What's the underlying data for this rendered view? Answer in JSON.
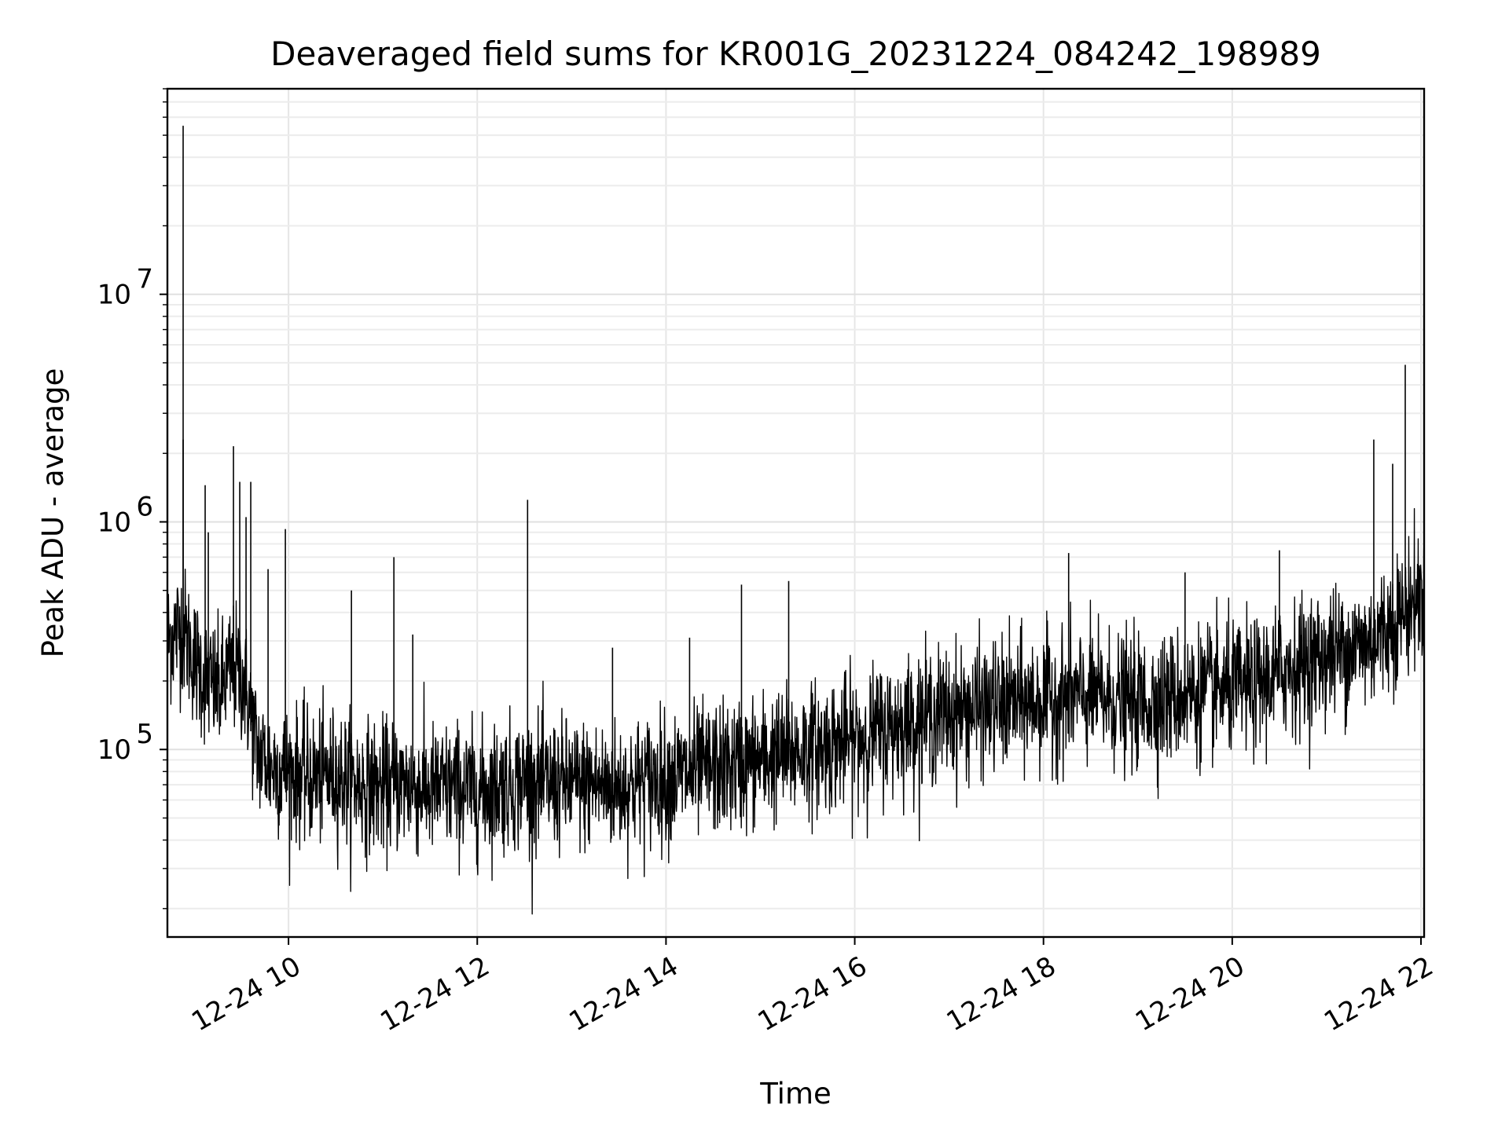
{
  "chart_data": {
    "type": "line",
    "title": "Deaveraged field sums for KR001G_20231224_084242_198989",
    "xlabel": "Time",
    "ylabel": "Peak ADU - average",
    "y_scale": "log",
    "xlim": [
      "2023-12-24 08:43",
      "2023-12-24 22:02"
    ],
    "ylim": [
      15000,
      80000000
    ],
    "grid": true,
    "x_ticks": [
      "12-24 10",
      "12-24 12",
      "12-24 14",
      "12-24 16",
      "12-24 18",
      "12-24 20",
      "12-24 22"
    ],
    "y_ticks": [
      {
        "value": 100000,
        "base": "10",
        "exp": "5"
      },
      {
        "value": 1000000,
        "base": "10",
        "exp": "6"
      },
      {
        "value": 10000000,
        "base": "10",
        "exp": "7"
      }
    ],
    "series_color": "#000000",
    "series": [
      {
        "x": [
          "08:43",
          "08:52",
          "09:00",
          "09:08",
          "09:16",
          "09:24",
          "09:32",
          "09:40",
          "09:48",
          "10:00",
          "10:15",
          "10:30",
          "10:45",
          "11:00",
          "11:15",
          "11:30",
          "11:45",
          "12:00",
          "12:15",
          "12:30",
          "12:45",
          "13:00",
          "13:15",
          "13:30",
          "13:45",
          "14:00",
          "14:15",
          "14:30",
          "14:45",
          "15:00",
          "15:15",
          "15:30",
          "15:45",
          "16:00",
          "16:15",
          "16:30",
          "16:45",
          "17:00",
          "17:15",
          "17:30",
          "17:45",
          "18:00",
          "18:15",
          "18:30",
          "18:45",
          "19:00",
          "19:15",
          "19:30",
          "19:45",
          "20:00",
          "20:15",
          "20:30",
          "20:45",
          "21:00",
          "21:15",
          "21:30",
          "21:45",
          "22:00"
        ],
        "y": [
          300000,
          350000,
          250000,
          200000,
          180000,
          230000,
          200000,
          100000,
          85000,
          80000,
          75000,
          78000,
          70000,
          68000,
          70000,
          66000,
          68000,
          65000,
          70000,
          72000,
          70000,
          70000,
          70000,
          68000,
          72000,
          75000,
          78000,
          82000,
          85000,
          90000,
          95000,
          100000,
          105000,
          110000,
          120000,
          130000,
          140000,
          145000,
          150000,
          155000,
          160000,
          165000,
          170000,
          170000,
          165000,
          160000,
          165000,
          175000,
          180000,
          185000,
          190000,
          220000,
          240000,
          260000,
          280000,
          300000,
          380000,
          480000
        ]
      }
    ],
    "spikes": [
      {
        "x": "08:53",
        "y": 55000000
      },
      {
        "x": "08:53",
        "y": 2300000
      },
      {
        "x": "09:07",
        "y": 1450000
      },
      {
        "x": "09:09",
        "y": 900000
      },
      {
        "x": "09:25",
        "y": 2150000
      },
      {
        "x": "09:29",
        "y": 1500000
      },
      {
        "x": "09:33",
        "y": 1050000
      },
      {
        "x": "09:36",
        "y": 1500000
      },
      {
        "x": "09:47",
        "y": 620000
      },
      {
        "x": "09:58",
        "y": 930000
      },
      {
        "x": "10:40",
        "y": 500000
      },
      {
        "x": "11:07",
        "y": 700000
      },
      {
        "x": "11:19",
        "y": 320000
      },
      {
        "x": "12:32",
        "y": 1250000
      },
      {
        "x": "13:26",
        "y": 280000
      },
      {
        "x": "14:15",
        "y": 310000
      },
      {
        "x": "14:48",
        "y": 530000
      },
      {
        "x": "15:18",
        "y": 550000
      },
      {
        "x": "18:16",
        "y": 730000
      },
      {
        "x": "19:30",
        "y": 600000
      },
      {
        "x": "20:30",
        "y": 750000
      },
      {
        "x": "21:30",
        "y": 2300000
      },
      {
        "x": "21:42",
        "y": 1800000
      },
      {
        "x": "21:50",
        "y": 4900000
      }
    ]
  }
}
